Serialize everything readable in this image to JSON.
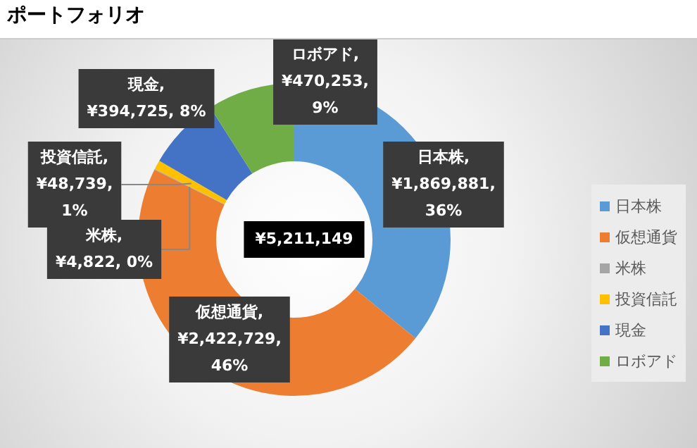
{
  "chart_data": {
    "type": "donut",
    "title": "ポートフォリオ",
    "categories": [
      "日本株",
      "仮想通貨",
      "米株",
      "投資信託",
      "現金",
      "ロボアド"
    ],
    "values": [
      1869881,
      2422729,
      4822,
      48739,
      394725,
      470253
    ],
    "colors": [
      "#5b9bd5",
      "#ed7d31",
      "#a5a5a5",
      "#ffc000",
      "#4472c4",
      "#70ad47"
    ],
    "value_labels": [
      "日本株, ¥1,869,881, 36%",
      "仮想通貨, ¥2,422,729, 46%",
      "米株, ¥4,822, 0%",
      "投資信託, ¥48,739, 1%",
      "現金, ¥394,725, 8%",
      "ロボアド, ¥470,253, 9%"
    ],
    "annotations": [
      "¥5,211,149"
    ],
    "legend": "right"
  }
}
